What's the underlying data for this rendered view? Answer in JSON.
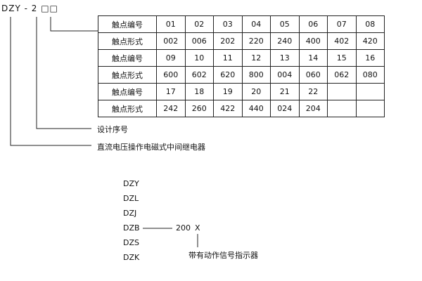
{
  "model_code": "DZY - 2 □□",
  "table": {
    "rows": [
      {
        "label": "触点编号",
        "values": [
          "01",
          "02",
          "03",
          "04",
          "05",
          "06",
          "07",
          "08"
        ]
      },
      {
        "label": "触点形式",
        "values": [
          "002",
          "006",
          "202",
          "220",
          "240",
          "400",
          "402",
          "420"
        ]
      },
      {
        "label": "触点编号",
        "values": [
          "09",
          "10",
          "11",
          "12",
          "13",
          "14",
          "15",
          "16"
        ]
      },
      {
        "label": "触点形式",
        "values": [
          "600",
          "602",
          "620",
          "800",
          "004",
          "060",
          "062",
          "080"
        ]
      },
      {
        "label": "触点编号",
        "values": [
          "17",
          "18",
          "19",
          "20",
          "21",
          "22",
          "",
          ""
        ]
      },
      {
        "label": "触点形式",
        "values": [
          "242",
          "260",
          "422",
          "440",
          "024",
          "204",
          "",
          ""
        ]
      }
    ]
  },
  "design_serial_label": "设计序号",
  "relay_type_label": "直流电压操作电磁式中间继电器",
  "series": [
    "DZY",
    "DZL",
    "DZJ",
    "DZB",
    "DZS",
    "DZK"
  ],
  "variant_code": "200",
  "variant_suffix": "X",
  "suffix_label": "带有动作信号指示器"
}
